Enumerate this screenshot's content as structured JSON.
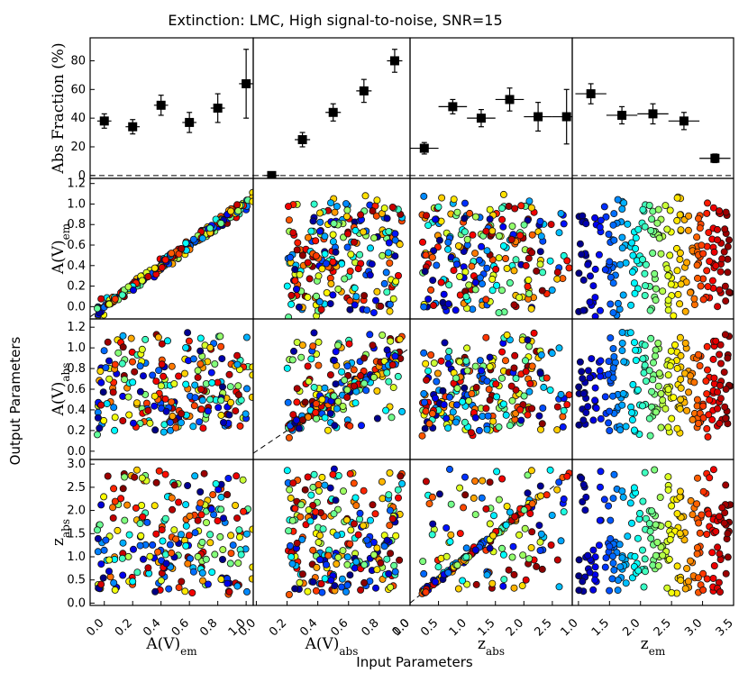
{
  "title": "Extinction: LMC, High signal-to-noise, SNR=15",
  "xlabel": "Input Parameters",
  "ylabel": "Output Parameters",
  "columns": [
    {
      "label": "A(V)",
      "sub": "em",
      "ticks": [
        "0.0",
        "0.2",
        "0.4",
        "0.6",
        "0.8",
        "1.0"
      ],
      "range": [
        -0.1,
        1.05
      ]
    },
    {
      "label": "A(V)",
      "sub": "abs",
      "ticks": [
        "0.0",
        "0.2",
        "0.4",
        "0.6",
        "0.8",
        "1.0"
      ],
      "range": [
        -0.02,
        1.0
      ]
    },
    {
      "label": "z",
      "sub": "abs",
      "ticks": [
        "0.0",
        "0.5",
        "1.0",
        "1.5",
        "2.0",
        "2.5"
      ],
      "range": [
        0.0,
        2.85
      ]
    },
    {
      "label": "z",
      "sub": "em",
      "ticks": [
        "1.0",
        "1.5",
        "2.0",
        "2.5",
        "3.0",
        "3.5"
      ],
      "range": [
        0.9,
        3.5
      ]
    }
  ],
  "rows": [
    {
      "label": "Abs Fraction (%)",
      "sub": "",
      "ticks": [
        "0",
        "20",
        "40",
        "60",
        "80"
      ],
      "range": [
        -2,
        96
      ]
    },
    {
      "label": "A(V)",
      "sub": "em",
      "ticks": [
        "0.0",
        "0.2",
        "0.4",
        "0.6",
        "0.8",
        "1.0",
        "1.2"
      ],
      "range": [
        -0.12,
        1.25
      ]
    },
    {
      "label": "A(V)",
      "sub": "abs",
      "ticks": [
        "0.0",
        "0.2",
        "0.4",
        "0.6",
        "0.8",
        "1.0",
        "1.2"
      ],
      "range": [
        -0.08,
        1.28
      ]
    },
    {
      "label": "z",
      "sub": "abs",
      "ticks": [
        "0.0",
        "0.5",
        "1.0",
        "1.5",
        "2.0",
        "2.5",
        "3.0"
      ],
      "range": [
        -0.05,
        3.1
      ]
    }
  ],
  "chart_data": {
    "type": "scatter",
    "title": "Extinction: LMC, High signal-to-noise, SNR=15",
    "xlabel": "Input Parameters",
    "ylabel": "Output Parameters",
    "abs_fraction": [
      {
        "x": [
          0.0,
          0.2,
          0.4,
          0.6,
          0.8,
          1.0
        ],
        "y": [
          38,
          34,
          49,
          37,
          47,
          64
        ],
        "yerr": [
          5,
          5,
          7,
          7,
          10,
          24
        ],
        "xerr": 0.05
      },
      {
        "x": [
          0.1,
          0.3,
          0.5,
          0.7,
          0.9
        ],
        "y": [
          0,
          25,
          44,
          59,
          80
        ],
        "yerr": [
          0,
          5,
          6,
          8,
          8
        ],
        "xerr": 0.05
      },
      {
        "x": [
          0.25,
          0.75,
          1.25,
          1.75,
          2.25,
          2.75
        ],
        "y": [
          19,
          48,
          40,
          53,
          41,
          41
        ],
        "yerr": [
          4,
          5,
          6,
          8,
          10,
          19
        ],
        "xerr": 0.25
      },
      {
        "x": [
          1.2,
          1.7,
          2.2,
          2.7,
          3.2
        ],
        "y": [
          57,
          42,
          43,
          38,
          12
        ],
        "yerr": [
          7,
          6,
          7,
          6,
          3
        ],
        "xerr": 0.25
      }
    ],
    "scatter_panels": "Simulated sources: 4x3 grid of recovered A(V)_em, A(V)_abs, z_abs vs input A(V)_em, A(V)_abs, z_abs, z_em; points colored by input z (blue low, red high); dashed one-to-one lines on diagonal panels",
    "colormap": [
      "#00007f",
      "#0000ff",
      "#007fff",
      "#00ffff",
      "#7fff7f",
      "#ffff00",
      "#ff7f00",
      "#ff0000",
      "#7f0000"
    ]
  }
}
